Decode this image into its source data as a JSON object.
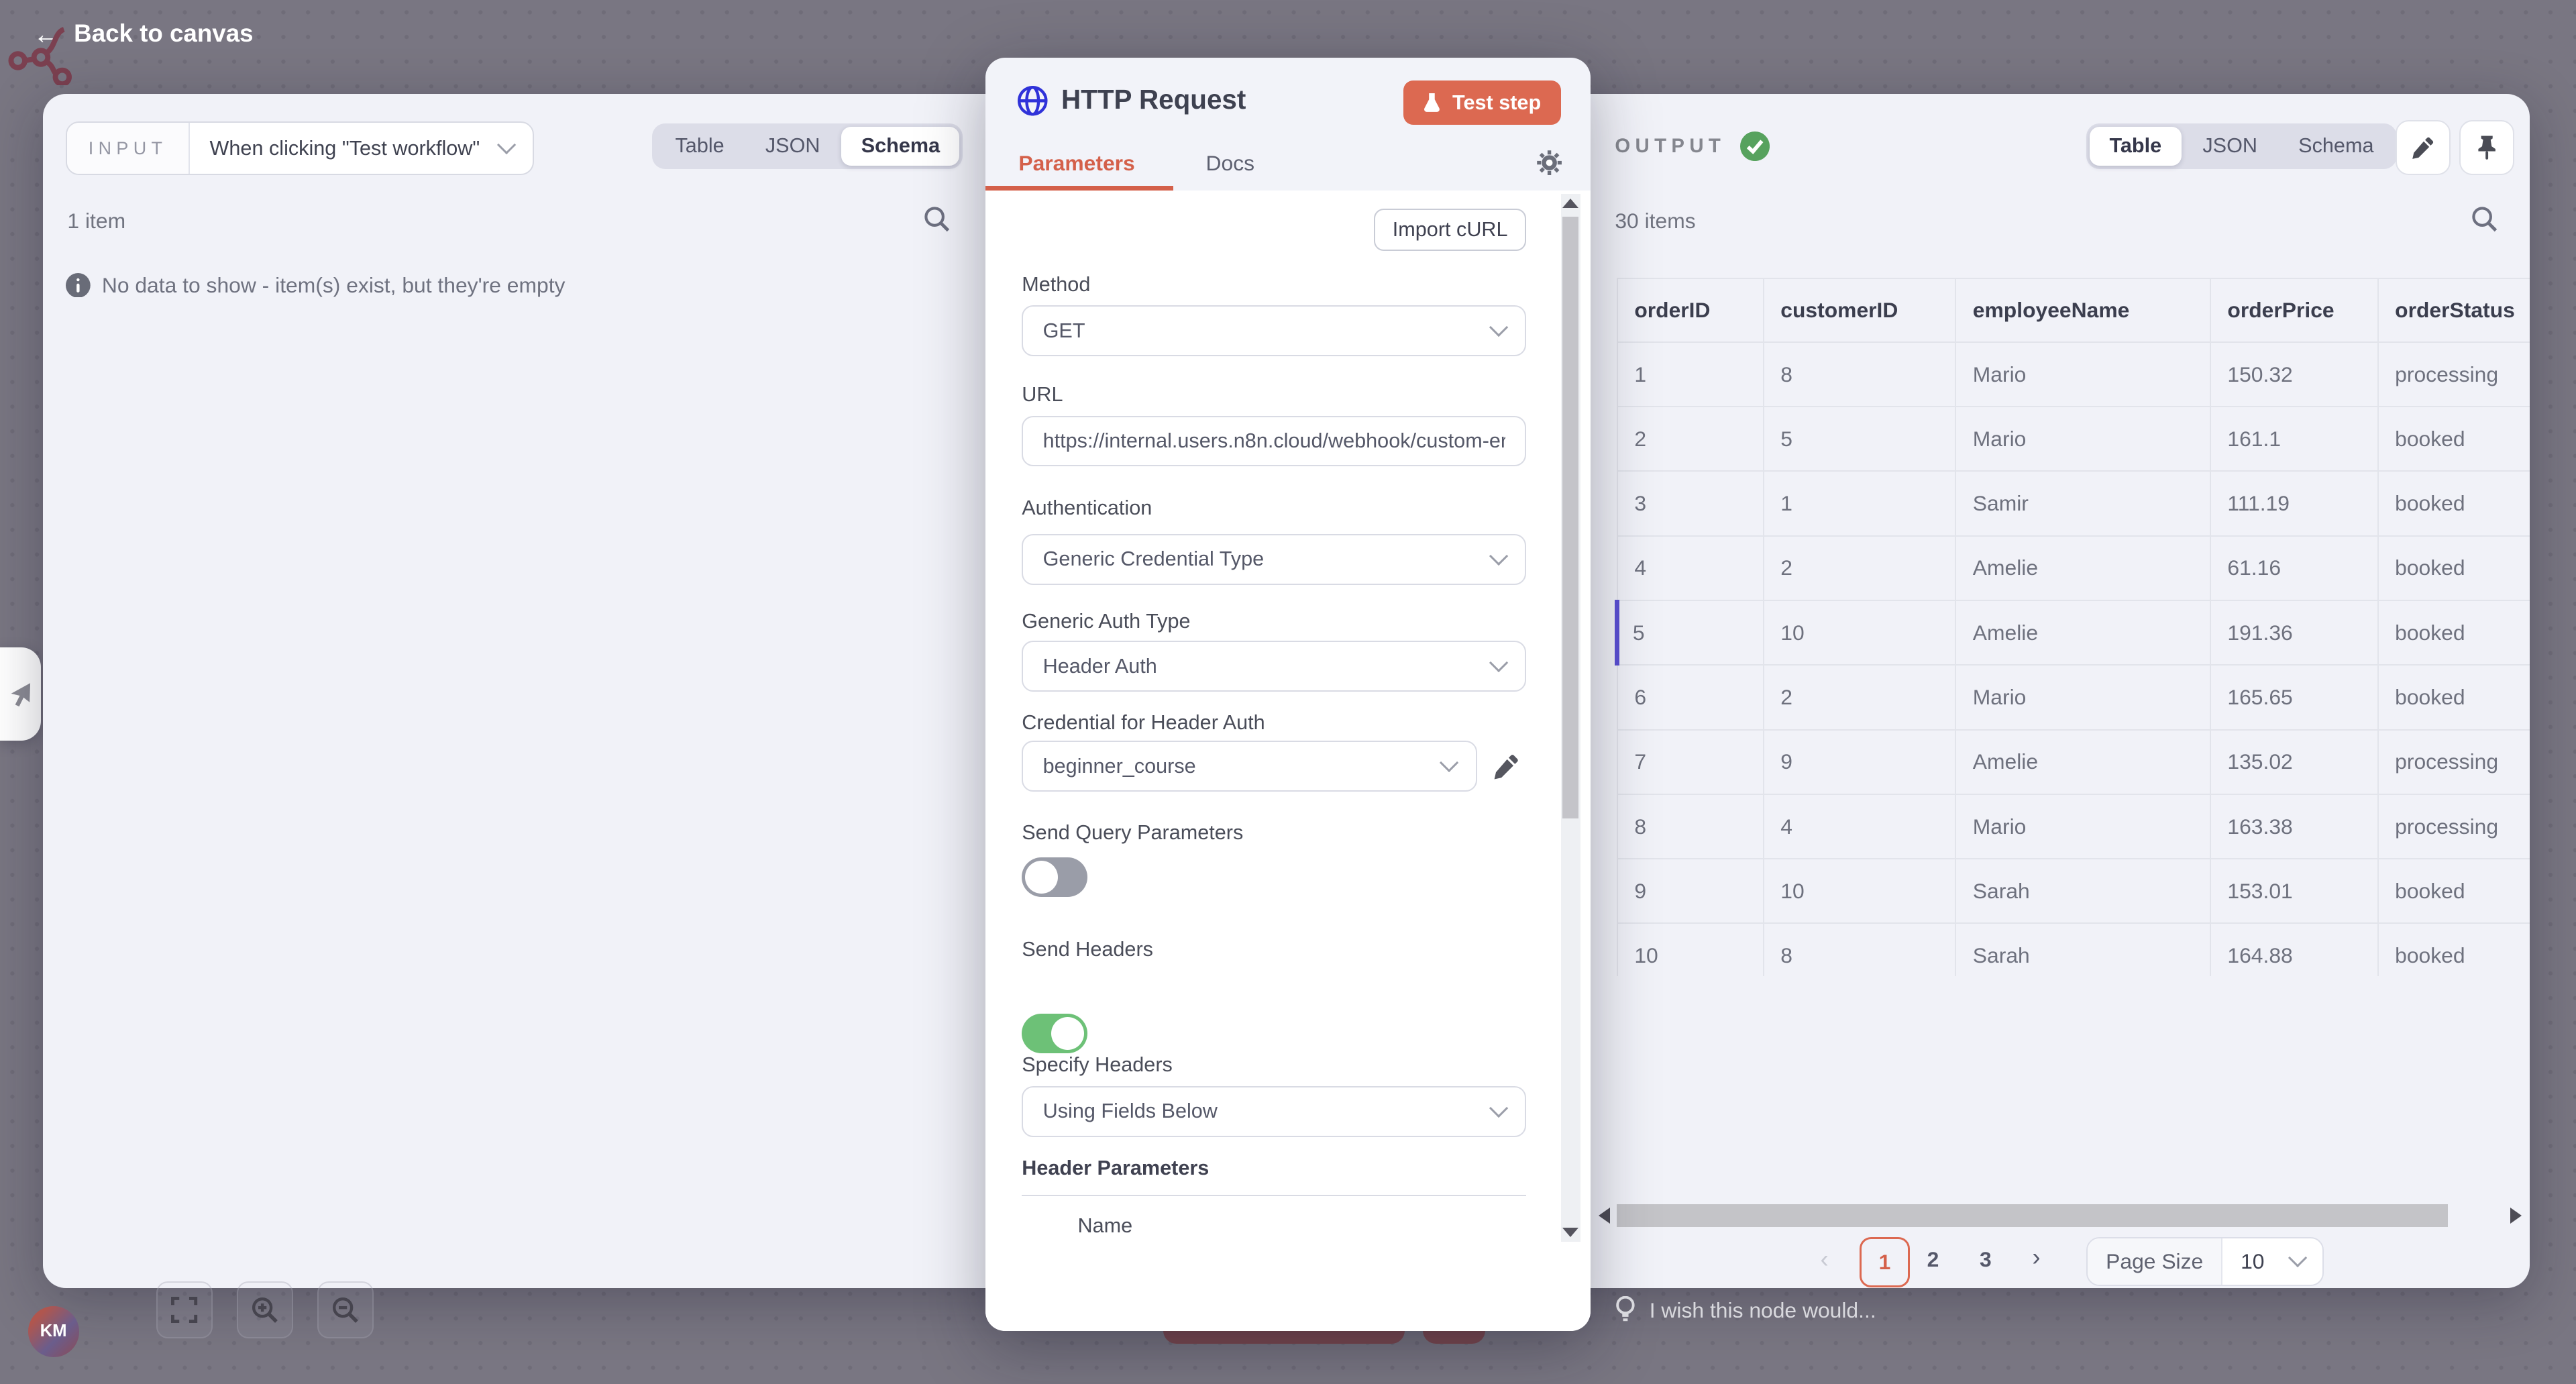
{
  "topbar": {
    "back_label": "Back to canvas"
  },
  "input_panel": {
    "label": "INPUT",
    "source_dropdown_value": "When clicking \"Test workflow\"",
    "tabs": {
      "table": "Table",
      "json": "JSON",
      "schema": "Schema",
      "active": "Schema"
    },
    "items_count": "1 item",
    "empty_message": "No data to show - item(s) exist, but they're empty"
  },
  "node_panel": {
    "title": "HTTP Request",
    "test_step_button": "Test step",
    "tabs": {
      "parameters": "Parameters",
      "docs": "Docs",
      "active": "Parameters"
    },
    "import_curl_button": "Import cURL",
    "fields": {
      "method": {
        "label": "Method",
        "value": "GET"
      },
      "url": {
        "label": "URL",
        "value": "https://internal.users.n8n.cloud/webhook/custom-er"
      },
      "authentication": {
        "label": "Authentication",
        "value": "Generic Credential Type"
      },
      "generic_auth_type": {
        "label": "Generic Auth Type",
        "value": "Header Auth"
      },
      "credential_for_header_auth": {
        "label": "Credential for Header Auth",
        "value": "beginner_course"
      },
      "send_query_parameters": {
        "label": "Send Query Parameters",
        "value": false
      },
      "send_headers": {
        "label": "Send Headers",
        "value": true
      },
      "specify_headers": {
        "label": "Specify Headers",
        "value": "Using Fields Below"
      }
    },
    "header_parameters_title": "Header Parameters",
    "name_label": "Name"
  },
  "output_panel": {
    "label": "OUTPUT",
    "tabs": {
      "table": "Table",
      "json": "JSON",
      "schema": "Schema",
      "active": "Table"
    },
    "items_count": "30 items",
    "table": {
      "columns": [
        "orderID",
        "customerID",
        "employeeName",
        "orderPrice",
        "orderStatus"
      ],
      "rows": [
        [
          "1",
          "8",
          "Mario",
          "150.32",
          "processing"
        ],
        [
          "2",
          "5",
          "Mario",
          "161.1",
          "booked"
        ],
        [
          "3",
          "1",
          "Samir",
          "111.19",
          "booked"
        ],
        [
          "4",
          "2",
          "Amelie",
          "61.16",
          "booked"
        ],
        [
          "5",
          "10",
          "Amelie",
          "191.36",
          "booked"
        ],
        [
          "6",
          "2",
          "Mario",
          "165.65",
          "booked"
        ],
        [
          "7",
          "9",
          "Amelie",
          "135.02",
          "processing"
        ],
        [
          "8",
          "4",
          "Mario",
          "163.38",
          "processing"
        ],
        [
          "9",
          "10",
          "Sarah",
          "153.01",
          "booked"
        ],
        [
          "10",
          "8",
          "Sarah",
          "164.88",
          "booked"
        ]
      ],
      "highlighted_row_index": 4
    },
    "pagination": {
      "pages": [
        "1",
        "2",
        "3"
      ],
      "active_page": "1",
      "prev_label": "‹",
      "next_label": "›",
      "page_size_label": "Page Size",
      "page_size_value": "10"
    },
    "wish_text": "I wish this node would..."
  },
  "canvas": {
    "avatar_initials": "KM"
  },
  "colors": {
    "accent_orange": "#dc6951",
    "tab_orange": "#d4604a",
    "toggle_green": "#6dc177",
    "success_green": "#57a25e",
    "globe_blue": "#3032d9",
    "row_accent": "#5b50d3",
    "logo_maroon": "#7b4050",
    "dim_red_button": "#7d4a50"
  }
}
